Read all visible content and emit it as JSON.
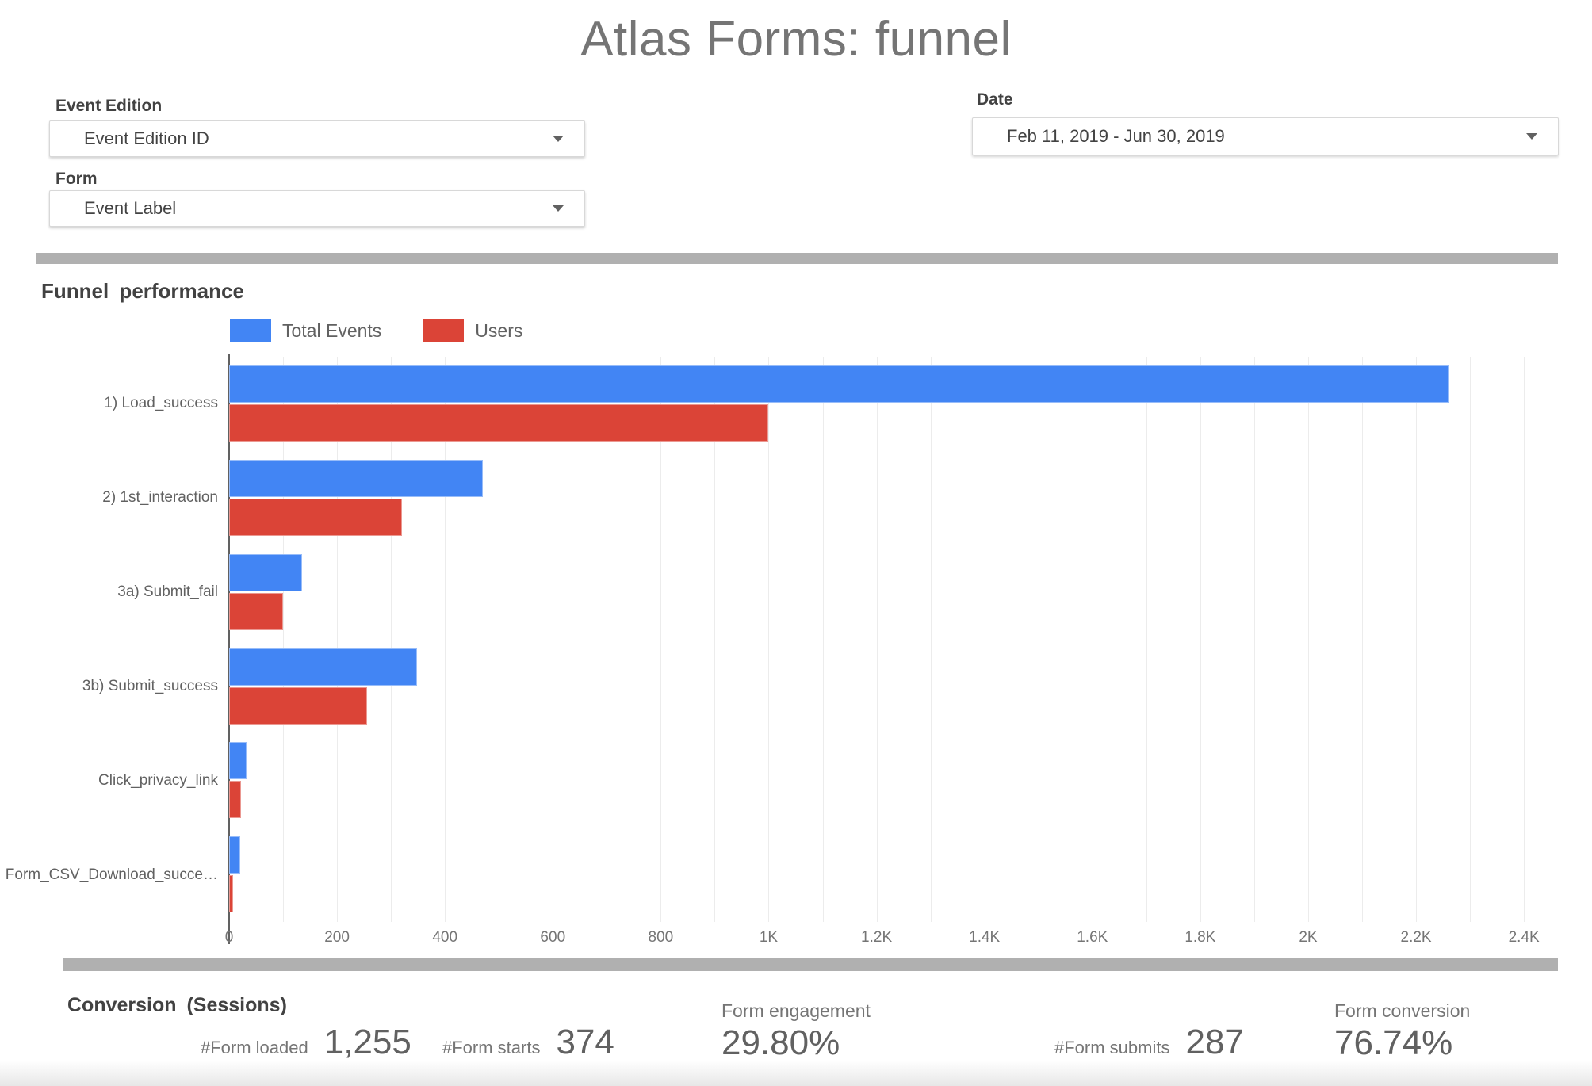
{
  "page": {
    "title": "Atlas Forms: funnel"
  },
  "filters": {
    "event_edition": {
      "label": "Event Edition",
      "value": "Event Edition ID"
    },
    "form": {
      "label": "Form",
      "value": "Event Label"
    },
    "date": {
      "label": "Date",
      "value": "Feb 11, 2019 - Jun 30, 2019"
    }
  },
  "chart": {
    "heading": "Funnel performance"
  },
  "chart_data": {
    "type": "bar",
    "orientation": "horizontal",
    "title": "Funnel performance",
    "xlabel": "",
    "ylabel": "",
    "categories": [
      "1) Load_success",
      "2) 1st_interaction",
      "3a) Submit_fail",
      "3b) Submit_success",
      "Click_privacy_link",
      "Form_CSV_Download_succe…"
    ],
    "series": [
      {
        "name": "Total Events",
        "color": "#4285F4",
        "values": [
          2262,
          470,
          135,
          348,
          32,
          20
        ]
      },
      {
        "name": "Users",
        "color": "#DB4437",
        "values": [
          1000,
          320,
          100,
          256,
          22,
          7
        ]
      }
    ],
    "xlim": [
      0,
      2460
    ],
    "minor_grid_step": 100,
    "grid": true,
    "legend_position": "top",
    "x_ticks": [
      {
        "value": 0,
        "label": "0"
      },
      {
        "value": 200,
        "label": "200"
      },
      {
        "value": 400,
        "label": "400"
      },
      {
        "value": 600,
        "label": "600"
      },
      {
        "value": 800,
        "label": "800"
      },
      {
        "value": 1000,
        "label": "1K"
      },
      {
        "value": 1200,
        "label": "1.2K"
      },
      {
        "value": 1400,
        "label": "1.4K"
      },
      {
        "value": 1600,
        "label": "1.6K"
      },
      {
        "value": 1800,
        "label": "1.8K"
      },
      {
        "value": 2000,
        "label": "2K"
      },
      {
        "value": 2200,
        "label": "2.2K"
      },
      {
        "value": 2400,
        "label": "2.4K"
      }
    ]
  },
  "metrics": {
    "heading": "Conversion (Sessions)",
    "form_loaded": {
      "label": "#Form loaded",
      "value": "1,255"
    },
    "form_starts": {
      "label": "#Form starts",
      "value": "374"
    },
    "form_engagement": {
      "label": "Form engagement",
      "value": "29.80%"
    },
    "form_submits": {
      "label": "#Form submits",
      "value": "287"
    },
    "form_conversion": {
      "label": "Form conversion",
      "value": "76.74%"
    }
  },
  "colors": {
    "total_events": "#4285F4",
    "users": "#DB4437",
    "divider": "#b0b0b0",
    "title_text": "#757575"
  }
}
